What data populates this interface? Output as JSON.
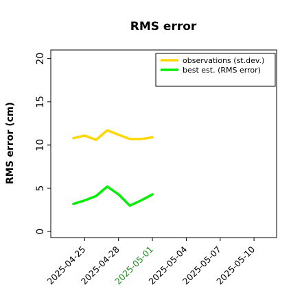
{
  "chart_data": {
    "type": "line",
    "title": "RMS error",
    "xlabel": "",
    "ylabel": "RMS error (cm)",
    "ylim": [
      -0.7,
      21
    ],
    "yticks": [
      0,
      5,
      10,
      15,
      20
    ],
    "xlim": [
      "2025-04-22",
      "2025-05-12"
    ],
    "xticks": [
      {
        "date": "2025-04-25",
        "label": "2025-04-25",
        "color": "#000000"
      },
      {
        "date": "2025-04-28",
        "label": "2025-04-28",
        "color": "#000000"
      },
      {
        "date": "2025-05-01",
        "label": "2025-05-01",
        "color": "#228B22"
      },
      {
        "date": "2025-05-04",
        "label": "2025-05-04",
        "color": "#000000"
      },
      {
        "date": "2025-05-07",
        "label": "2025-05-07",
        "color": "#000000"
      },
      {
        "date": "2025-05-10",
        "label": "2025-05-10",
        "color": "#000000"
      }
    ],
    "grid": false,
    "legend_position": "top-right",
    "series": [
      {
        "name": "observations (st.dev.)",
        "color": "#FFD700",
        "x": [
          "2025-04-24",
          "2025-04-25",
          "2025-04-26",
          "2025-04-27",
          "2025-04-28",
          "2025-04-29",
          "2025-04-30",
          "2025-05-01"
        ],
        "values": [
          10.8,
          11.1,
          10.6,
          11.7,
          11.2,
          10.7,
          10.7,
          10.9
        ]
      },
      {
        "name": "best est. (RMS error)",
        "color": "#00EE00",
        "x": [
          "2025-04-24",
          "2025-04-25",
          "2025-04-26",
          "2025-04-27",
          "2025-04-28",
          "2025-04-29",
          "2025-04-30",
          "2025-05-01"
        ],
        "values": [
          3.2,
          3.6,
          4.1,
          5.2,
          4.3,
          3.0,
          3.6,
          4.3
        ]
      }
    ]
  }
}
